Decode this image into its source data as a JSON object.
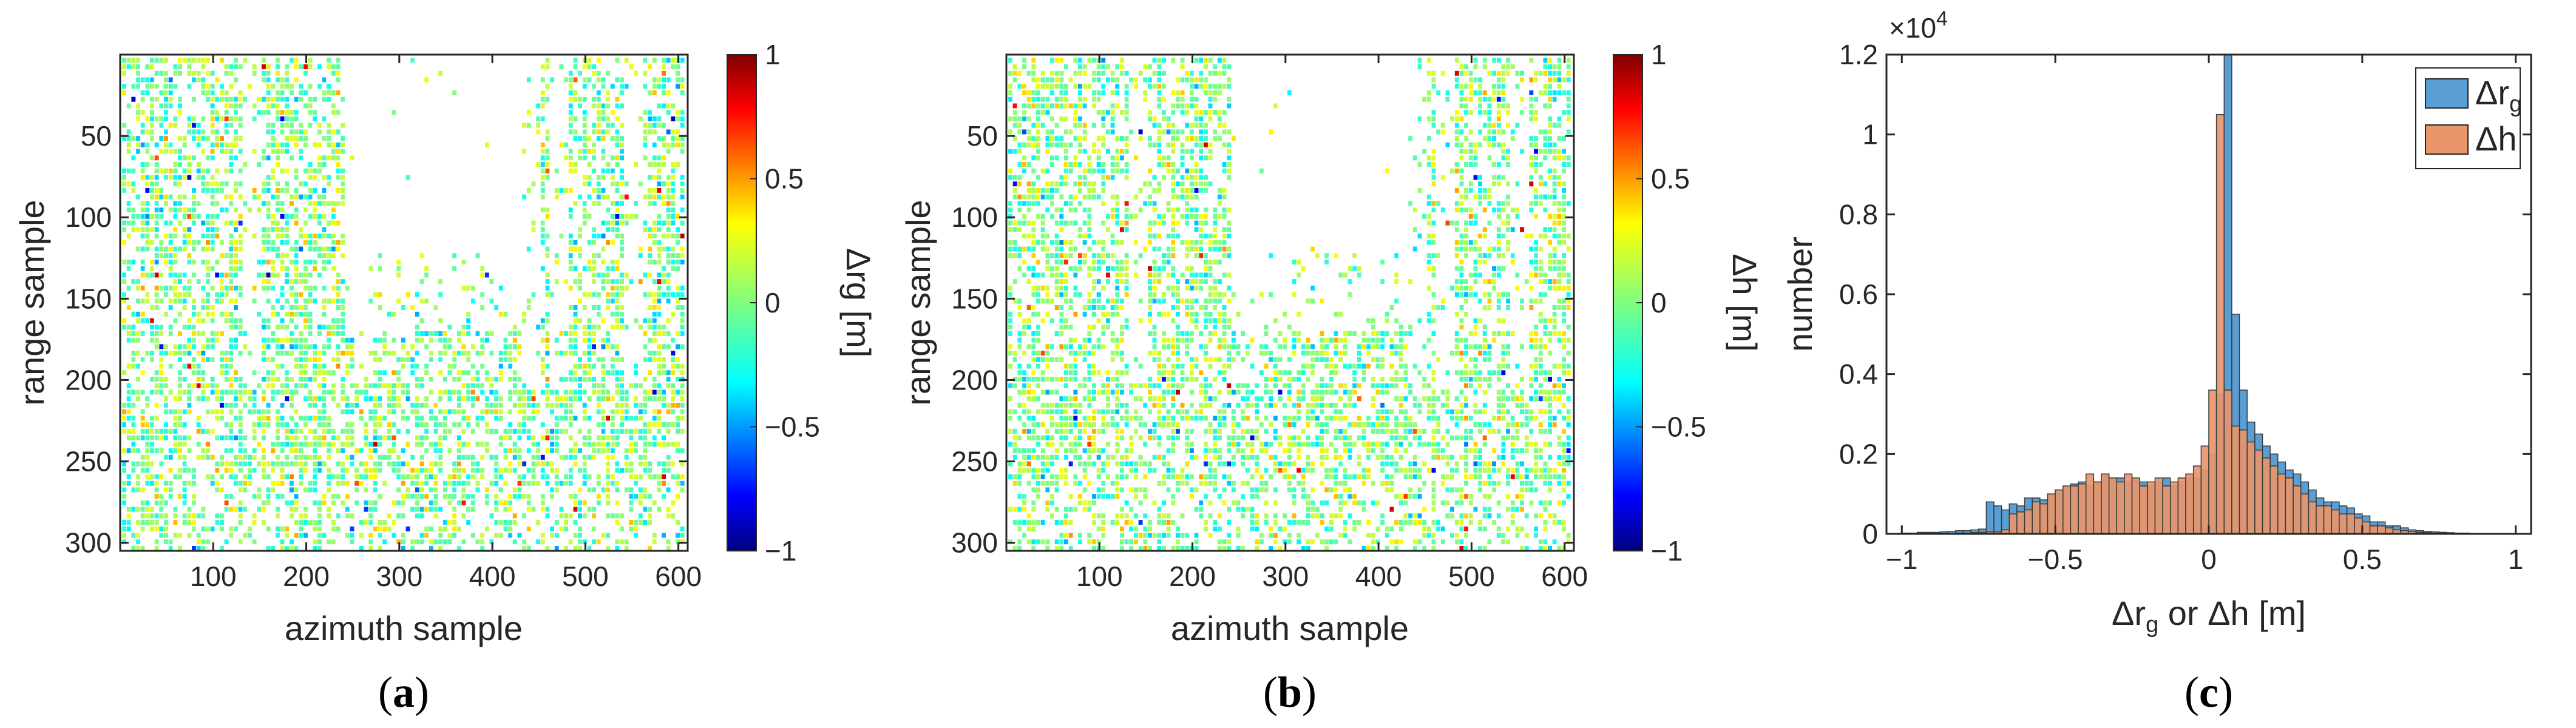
{
  "chart_data": [
    {
      "type": "heatmap",
      "panel_label": "a",
      "xlabel": "azimuth sample",
      "ylabel": "range sample",
      "x_ticks": [
        "100",
        "200",
        "300",
        "400",
        "500",
        "600"
      ],
      "x_tick_values": [
        100,
        200,
        300,
        400,
        500,
        600
      ],
      "y_ticks": [
        "50",
        "100",
        "150",
        "200",
        "250",
        "300"
      ],
      "y_tick_values": [
        50,
        100,
        150,
        200,
        250,
        300
      ],
      "xlim": [
        0,
        610
      ],
      "ylim": [
        0,
        305
      ],
      "colorbar": {
        "label": "Δrg [m]",
        "range": [
          -1,
          1
        ],
        "ticks": [
          "1",
          "0.5",
          "0",
          "−0.5",
          "−1"
        ],
        "tick_values": [
          1,
          0.5,
          0,
          -0.5,
          -1
        ],
        "colormap": "jet"
      },
      "description_values": "scattered residuals mostly between -0.25 and 0.25 m"
    },
    {
      "type": "heatmap",
      "panel_label": "b",
      "xlabel": "azimuth sample",
      "ylabel": "range sample",
      "x_ticks": [
        "100",
        "200",
        "300",
        "400",
        "500",
        "600"
      ],
      "x_tick_values": [
        100,
        200,
        300,
        400,
        500,
        600
      ],
      "y_ticks": [
        "50",
        "100",
        "150",
        "200",
        "250",
        "300"
      ],
      "y_tick_values": [
        50,
        100,
        150,
        200,
        250,
        300
      ],
      "xlim": [
        0,
        610
      ],
      "ylim": [
        0,
        305
      ],
      "colorbar": {
        "label": "Δh [m]",
        "range": [
          -1,
          1
        ],
        "ticks": [
          "1",
          "0.5",
          "0",
          "−0.5",
          "−1"
        ],
        "tick_values": [
          1,
          0.5,
          0,
          -0.5,
          -1
        ],
        "colormap": "jet"
      },
      "description_values": "scattered residuals mostly between -0.25 and 0.25 m"
    },
    {
      "type": "bar",
      "subtype": "histogram",
      "panel_label": "c",
      "xlabel": "Δrg or Δh [m]",
      "ylabel": "number",
      "exponent_label": "×10",
      "exponent_power": "4",
      "xlim": [
        -1.05,
        1.05
      ],
      "ylim": [
        0,
        1.2
      ],
      "x_ticks": [
        "−1",
        "−0.5",
        "0",
        "0.5",
        "1"
      ],
      "x_tick_values": [
        -1,
        -0.5,
        0,
        0.5,
        1
      ],
      "y_ticks": [
        "0",
        "0.2",
        "0.4",
        "0.6",
        "0.8",
        "1",
        "1.2"
      ],
      "y_tick_values": [
        0,
        0.2,
        0.4,
        0.6,
        0.8,
        1,
        1.2
      ],
      "bin_width": 0.025,
      "bin_start": -1.0,
      "series": [
        {
          "name": "Δrg",
          "legend_main": "Δr",
          "legend_sub": "g",
          "color": "#5a9fd4",
          "values": [
            0.002,
            0.002,
            0.004,
            0.004,
            0.004,
            0.005,
            0.006,
            0.008,
            0.008,
            0.01,
            0.012,
            0.08,
            0.07,
            0.06,
            0.075,
            0.07,
            0.09,
            0.09,
            0.085,
            0.1,
            0.11,
            0.115,
            0.125,
            0.13,
            0.12,
            0.13,
            0.15,
            0.14,
            0.14,
            0.13,
            0.135,
            0.13,
            0.12,
            0.13,
            0.14,
            0.12,
            0.13,
            0.14,
            0.14,
            0.16,
            0.2,
            0.35,
            1.2,
            0.55,
            0.36,
            0.28,
            0.25,
            0.22,
            0.2,
            0.18,
            0.16,
            0.15,
            0.13,
            0.11,
            0.09,
            0.08,
            0.08,
            0.07,
            0.065,
            0.05,
            0.045,
            0.03,
            0.03,
            0.02,
            0.02,
            0.015,
            0.01,
            0.008,
            0.006,
            0.005,
            0.004,
            0.003,
            0.002,
            0.002,
            0.001,
            0.001,
            0.001,
            0.001,
            0.001,
            0.0
          ]
        },
        {
          "name": "Δh",
          "legend_main": "Δh",
          "legend_sub": "",
          "color": "#e8956a",
          "values": [
            0.0,
            0.0,
            0.0,
            0.0,
            0.0,
            0.0,
            0.0,
            0.002,
            0.002,
            0.003,
            0.004,
            0.005,
            0.005,
            0.01,
            0.05,
            0.055,
            0.06,
            0.08,
            0.075,
            0.1,
            0.11,
            0.12,
            0.12,
            0.125,
            0.15,
            0.13,
            0.15,
            0.14,
            0.13,
            0.15,
            0.14,
            0.12,
            0.13,
            0.14,
            0.12,
            0.13,
            0.14,
            0.15,
            0.17,
            0.22,
            0.36,
            1.05,
            0.36,
            0.27,
            0.26,
            0.23,
            0.21,
            0.19,
            0.17,
            0.15,
            0.14,
            0.12,
            0.1,
            0.08,
            0.07,
            0.07,
            0.06,
            0.05,
            0.05,
            0.04,
            0.03,
            0.02,
            0.02,
            0.015,
            0.01,
            0.008,
            0.006,
            0.004,
            0.003,
            0.002,
            0.002,
            0.001,
            0.001,
            0.0,
            0.0,
            0.0,
            0.0,
            0.0,
            0.0,
            0.0
          ]
        }
      ]
    }
  ]
}
